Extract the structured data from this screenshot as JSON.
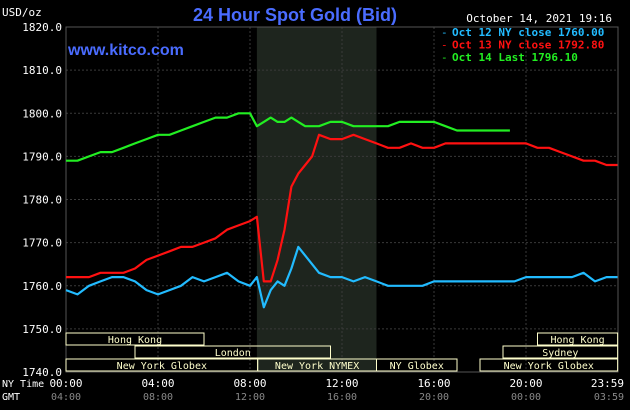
{
  "header": {
    "title": "24 Hour Spot Gold (Bid)",
    "unit": "USD/oz",
    "timestamp": "October 14, 2021 19:16",
    "source_url": "www.kitco.com"
  },
  "colors": {
    "background": "#000000",
    "grid": "#3a3a3a",
    "title": "#4a6cff",
    "url": "#4a6cff",
    "text": "#ffffff",
    "shade": "#1e251e",
    "market_bar": "#ffffcc",
    "oct12": "#22bbff",
    "oct13": "#ff1111",
    "oct14": "#22ee22"
  },
  "sessions": [
    {
      "name": "Hong Kong",
      "row": 0,
      "start": "00:00",
      "end": "06:00"
    },
    {
      "name": "Hong Kong",
      "row": 0,
      "start": "20:30",
      "end": "23:59"
    },
    {
      "name": "London",
      "row": 1,
      "start": "03:00",
      "end": "11:30"
    },
    {
      "name": "Sydney",
      "row": 1,
      "start": "19:00",
      "end": "23:59"
    },
    {
      "name": "New York Globex",
      "row": 2,
      "start": "00:00",
      "end": "08:20"
    },
    {
      "name": "New York NYMEX",
      "row": 2,
      "start": "08:20",
      "end": "13:30"
    },
    {
      "name": "NY Globex",
      "row": 2,
      "start": "13:30",
      "end": "17:00"
    },
    {
      "name": "New York Globex",
      "row": 2,
      "start": "18:00",
      "end": "23:59"
    }
  ],
  "footer": {
    "ny_time_label": "NY Time",
    "gmt_label": "GMT",
    "ny_ticks": [
      "00:00",
      "04:00",
      "08:00",
      "12:00",
      "16:00",
      "20:00",
      "23:59"
    ],
    "gmt_ticks": [
      "04:00",
      "08:00",
      "12:00",
      "16:00",
      "20:00",
      "00:00",
      "03:59"
    ]
  },
  "chart_data": {
    "type": "line",
    "title": "24 Hour Spot Gold (Bid)",
    "ylabel": "USD/oz",
    "xlabel": "NY Time",
    "ylim": [
      1740,
      1820
    ],
    "yticks": [
      "1820.0",
      "1810.0",
      "1800.0",
      "1790.0",
      "1780.0",
      "1770.0",
      "1760.0",
      "1750.0",
      "1740.0"
    ],
    "xlim_hours": [
      0,
      24
    ],
    "shaded_hours": [
      8.3,
      13.5
    ],
    "grid": true,
    "legend_position": "top-right",
    "series": [
      {
        "name": "Oct 12 NY close 1760.00",
        "color": "#22bbff",
        "x": [
          0,
          0.5,
          1,
          1.5,
          2,
          2.5,
          3,
          3.5,
          4,
          4.5,
          5,
          5.5,
          6,
          6.5,
          7,
          7.5,
          8,
          8.3,
          8.6,
          8.9,
          9.2,
          9.5,
          9.8,
          10.1,
          10.4,
          10.7,
          11,
          11.5,
          12,
          12.5,
          13,
          13.5,
          14,
          14.5,
          15,
          15.5,
          16,
          16.5,
          17,
          17.5,
          18,
          18.5,
          19,
          19.5,
          20,
          20.5,
          21,
          21.5,
          22,
          22.5,
          23,
          23.5,
          23.98
        ],
        "values": [
          1759,
          1758,
          1760,
          1761,
          1762,
          1762,
          1761,
          1759,
          1758,
          1759,
          1760,
          1762,
          1761,
          1762,
          1763,
          1761,
          1760,
          1762,
          1755,
          1759,
          1761,
          1760,
          1764,
          1769,
          1767,
          1765,
          1763,
          1762,
          1762,
          1761,
          1762,
          1761,
          1760,
          1760,
          1760,
          1760,
          1761,
          1761,
          1761,
          1761,
          1761,
          1761,
          1761,
          1761,
          1762,
          1762,
          1762,
          1762,
          1762,
          1763,
          1761,
          1762,
          1762
        ]
      },
      {
        "name": "Oct 13 NY close 1792.80",
        "color": "#ff1111",
        "x": [
          0,
          0.5,
          1,
          1.5,
          2,
          2.5,
          3,
          3.5,
          4,
          4.5,
          5,
          5.5,
          6,
          6.5,
          7,
          7.5,
          8,
          8.3,
          8.6,
          8.9,
          9.2,
          9.5,
          9.8,
          10.1,
          10.4,
          10.7,
          11,
          11.5,
          12,
          12.5,
          13,
          13.5,
          14,
          14.5,
          15,
          15.5,
          16,
          16.5,
          17,
          17.5,
          18,
          18.5,
          19,
          19.5,
          20,
          20.5,
          21,
          21.5,
          22,
          22.5,
          23,
          23.5,
          23.98
        ],
        "values": [
          1762,
          1762,
          1762,
          1763,
          1763,
          1763,
          1764,
          1766,
          1767,
          1768,
          1769,
          1769,
          1770,
          1771,
          1773,
          1774,
          1775,
          1776,
          1761,
          1761,
          1766,
          1773,
          1783,
          1786,
          1788,
          1790,
          1795,
          1794,
          1794,
          1795,
          1794,
          1793,
          1792,
          1792,
          1793,
          1792,
          1792,
          1793,
          1793,
          1793,
          1793,
          1793,
          1793,
          1793,
          1793,
          1792,
          1792,
          1791,
          1790,
          1789,
          1789,
          1788,
          1788
        ]
      },
      {
        "name": "Oct 14 Last 1796.10",
        "color": "#22ee22",
        "x": [
          0,
          0.5,
          1,
          1.5,
          2,
          2.5,
          3,
          3.5,
          4,
          4.5,
          5,
          5.5,
          6,
          6.5,
          7,
          7.5,
          8,
          8.3,
          8.6,
          8.9,
          9.2,
          9.5,
          9.8,
          10.1,
          10.4,
          10.7,
          11,
          11.5,
          12,
          12.5,
          13,
          13.5,
          14,
          14.5,
          15,
          15.5,
          16,
          16.5,
          17,
          17.5,
          18,
          18.5,
          19,
          19.3
        ],
        "values": [
          1789,
          1789,
          1790,
          1791,
          1791,
          1792,
          1793,
          1794,
          1795,
          1795,
          1796,
          1797,
          1798,
          1799,
          1799,
          1800,
          1800,
          1797,
          1798,
          1799,
          1798,
          1798,
          1799,
          1798,
          1797,
          1797,
          1797,
          1798,
          1798,
          1797,
          1797,
          1797,
          1797,
          1798,
          1798,
          1798,
          1798,
          1797,
          1796,
          1796,
          1796,
          1796,
          1796,
          1796
        ]
      }
    ]
  }
}
